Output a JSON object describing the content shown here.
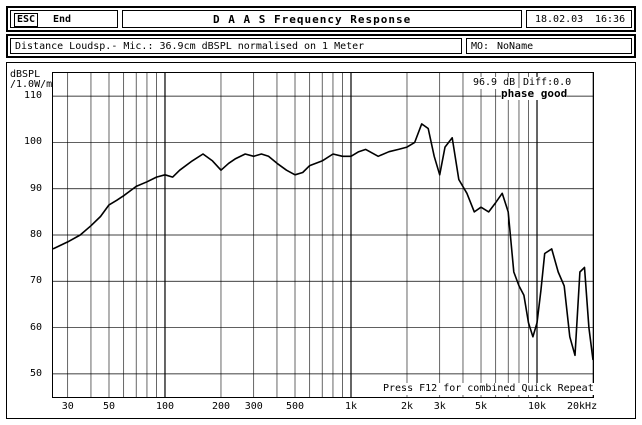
{
  "header": {
    "esc_label": "ESC",
    "end_label": "End",
    "title": "D A A S  Frequency Response",
    "date": "18.02.03",
    "time": "16:36"
  },
  "info": {
    "description": "Distance Loudsp.- Mic.: 36.9cm dBSPL normalised on 1 Meter",
    "mo_label": "MO:",
    "mo_value": "NoName"
  },
  "chart_data": {
    "type": "line",
    "ylabel": "dBSPL /1.0W/m",
    "xscale": "log",
    "xlim": [
      25,
      20000
    ],
    "ylim": [
      45,
      115
    ],
    "yticks": [
      110,
      100,
      90,
      80,
      70,
      60,
      50
    ],
    "xticks": [
      {
        "value": 30,
        "label": "30"
      },
      {
        "value": 50,
        "label": "50"
      },
      {
        "value": 100,
        "label": "100"
      },
      {
        "value": 200,
        "label": "200"
      },
      {
        "value": 300,
        "label": "300"
      },
      {
        "value": 500,
        "label": "500"
      },
      {
        "value": 1000,
        "label": "1k"
      },
      {
        "value": 2000,
        "label": "2k"
      },
      {
        "value": 3000,
        "label": "3k"
      },
      {
        "value": 5000,
        "label": "5k"
      },
      {
        "value": 10000,
        "label": "10k"
      },
      {
        "value": 20000,
        "label": "20kHz"
      }
    ],
    "grid": true,
    "annotation_level": "96.9 dB",
    "annotation_diff": "Diff:0.0",
    "annotation_phase": "phase good",
    "footer_note": "Press F12 for combined Quick Repeat",
    "series": [
      {
        "x": [
          25,
          30,
          35,
          40,
          45,
          50,
          55,
          60,
          70,
          80,
          90,
          100,
          110,
          120,
          140,
          160,
          180,
          200,
          220,
          240,
          270,
          300,
          330,
          360,
          400,
          450,
          500,
          550,
          600,
          700,
          800,
          900,
          1000,
          1100,
          1200,
          1400,
          1600,
          1800,
          2000,
          2200,
          2400,
          2600,
          2800,
          3000,
          3200,
          3500,
          3800,
          4200,
          4600,
          5000,
          5500,
          6000,
          6500,
          7000,
          7500,
          8000,
          8500,
          9000,
          9500,
          10000,
          10500,
          11000,
          12000,
          13000,
          14000,
          15000,
          16000,
          17000,
          18000,
          19000,
          20000
        ],
        "y": [
          77,
          78.5,
          80,
          82,
          84,
          86.5,
          87.5,
          88.5,
          90.5,
          91.5,
          92.5,
          93,
          92.5,
          94,
          96,
          97.5,
          96,
          94,
          95.5,
          96.5,
          97.5,
          97,
          97.5,
          97,
          95.5,
          94,
          93,
          93.5,
          95,
          96,
          97.5,
          97,
          97,
          98,
          98.5,
          97,
          98,
          98.5,
          99,
          100,
          104,
          103,
          97,
          93,
          99,
          101,
          92,
          89,
          85,
          86,
          85,
          87,
          89,
          85,
          72,
          69,
          67,
          61,
          58,
          61,
          68,
          76,
          77,
          72,
          69,
          58,
          54,
          72,
          73,
          60,
          53
        ]
      }
    ]
  }
}
